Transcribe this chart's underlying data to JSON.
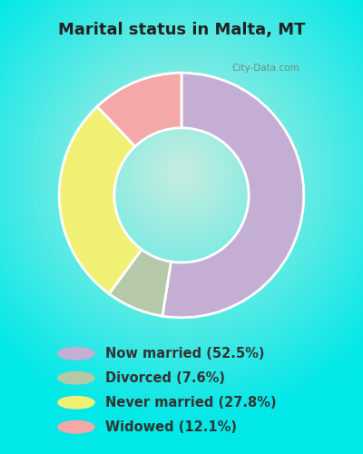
{
  "title": "Marital status in Malta, MT",
  "slices": [
    52.5,
    7.6,
    27.8,
    12.1
  ],
  "labels": [
    "Now married (52.5%)",
    "Divorced (7.6%)",
    "Never married (27.8%)",
    "Widowed (12.1%)"
  ],
  "colors": [
    "#c4aed4",
    "#b5c9a8",
    "#f0f075",
    "#f4a8a8"
  ],
  "bg_outer": "#00e8e8",
  "bg_inner": "#c8ede0",
  "title_fontsize": 13,
  "title_color": "#222222",
  "legend_fontsize": 10.5,
  "legend_text_color": "#333333",
  "watermark": "City-Data.com",
  "start_angle": 90,
  "donut_width": 0.45
}
